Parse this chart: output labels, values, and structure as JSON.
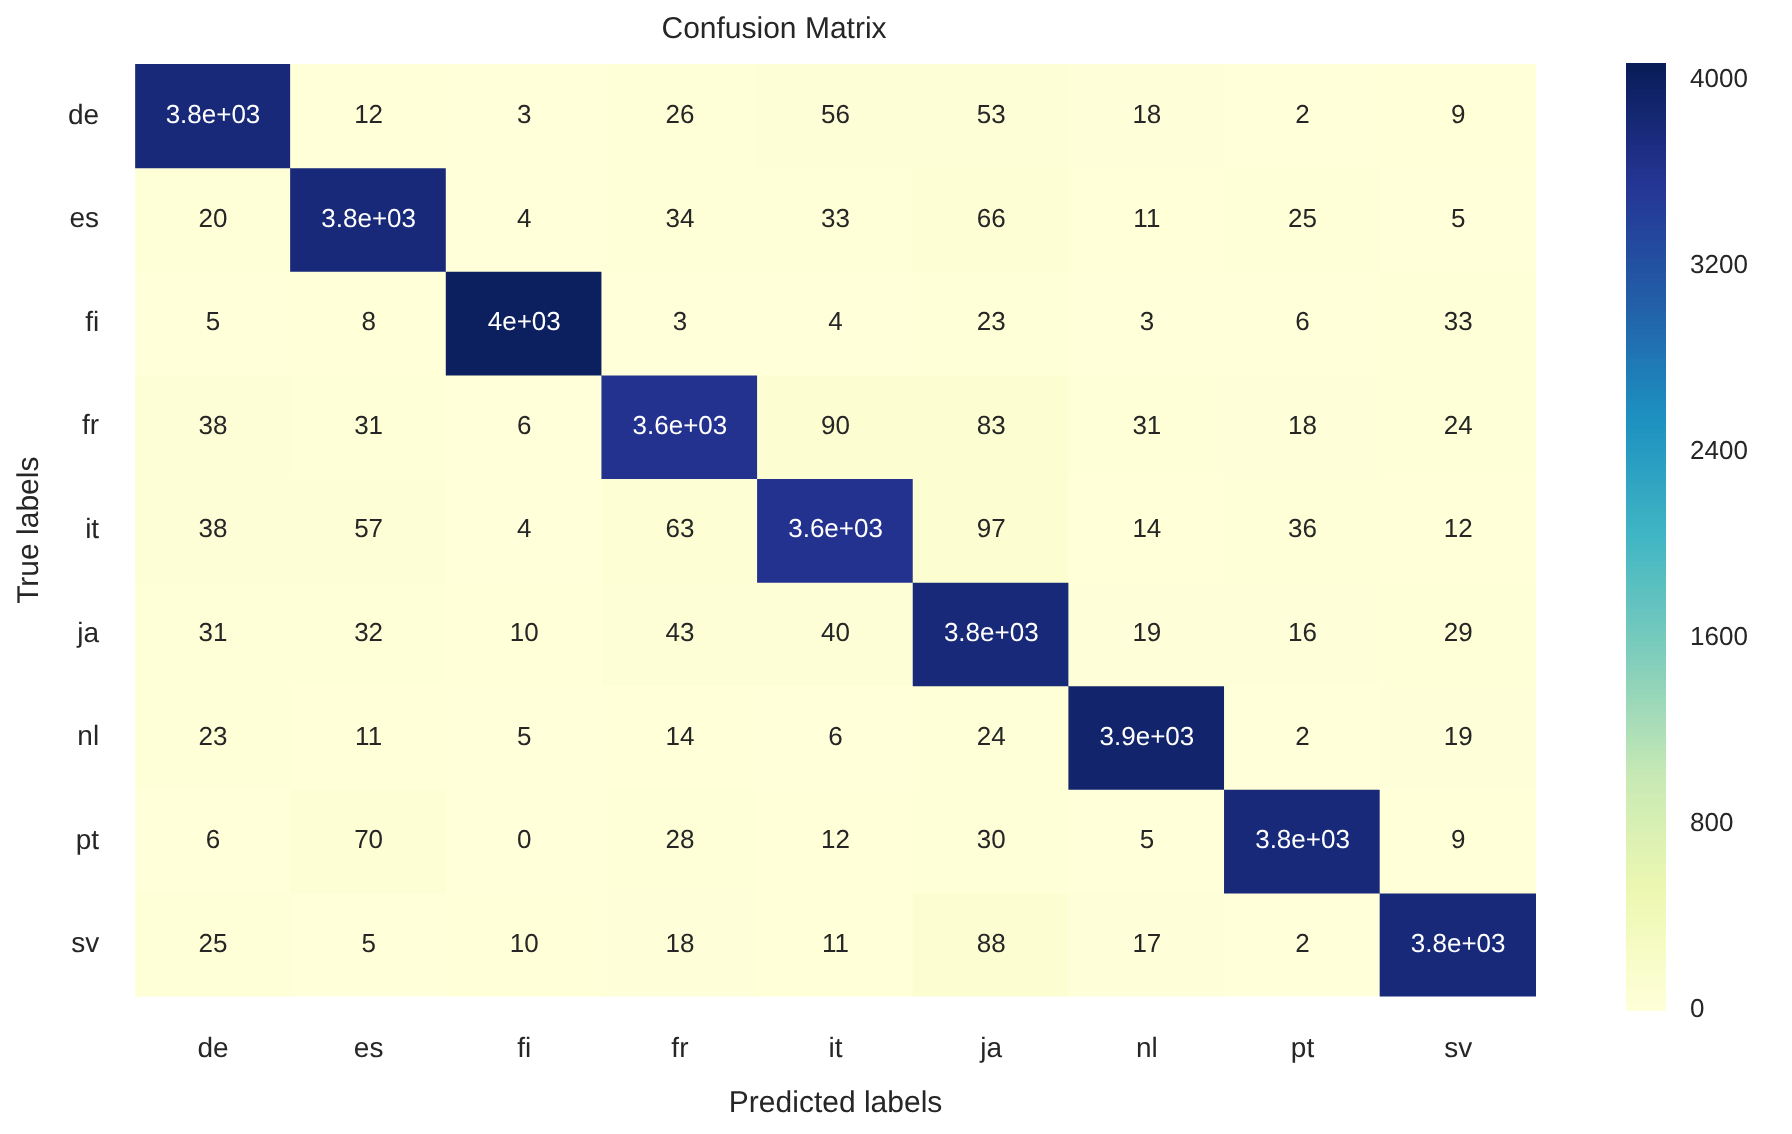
{
  "chart_data": {
    "type": "heatmap",
    "title": "Confusion Matrix",
    "xlabel": "Predicted labels",
    "ylabel": "True labels",
    "categories": [
      "de",
      "es",
      "fi",
      "fr",
      "it",
      "ja",
      "nl",
      "pt",
      "sv"
    ],
    "y_categories": [
      "de",
      "es",
      "fi",
      "fr",
      "it",
      "ja",
      "nl",
      "pt",
      "sv"
    ],
    "cells": [
      [
        3800,
        12,
        3,
        26,
        56,
        53,
        18,
        2,
        9
      ],
      [
        20,
        3800,
        4,
        34,
        33,
        66,
        11,
        25,
        5
      ],
      [
        5,
        8,
        4000,
        3,
        4,
        23,
        3,
        6,
        33
      ],
      [
        38,
        31,
        6,
        3600,
        90,
        83,
        31,
        18,
        24
      ],
      [
        38,
        57,
        4,
        63,
        3600,
        97,
        14,
        36,
        12
      ],
      [
        31,
        32,
        10,
        43,
        40,
        3800,
        19,
        16,
        29
      ],
      [
        23,
        11,
        5,
        14,
        6,
        24,
        3900,
        2,
        19
      ],
      [
        6,
        70,
        0,
        28,
        12,
        30,
        5,
        3800,
        9
      ],
      [
        25,
        5,
        10,
        18,
        11,
        88,
        17,
        2,
        3800
      ]
    ],
    "cell_labels": [
      [
        "3.8e+03",
        "12",
        "3",
        "26",
        "56",
        "53",
        "18",
        "2",
        "9"
      ],
      [
        "20",
        "3.8e+03",
        "4",
        "34",
        "33",
        "66",
        "11",
        "25",
        "5"
      ],
      [
        "5",
        "8",
        "4e+03",
        "3",
        "4",
        "23",
        "3",
        "6",
        "33"
      ],
      [
        "38",
        "31",
        "6",
        "3.6e+03",
        "90",
        "83",
        "31",
        "18",
        "24"
      ],
      [
        "38",
        "57",
        "4",
        "63",
        "3.6e+03",
        "97",
        "14",
        "36",
        "12"
      ],
      [
        "31",
        "32",
        "10",
        "43",
        "40",
        "3.8e+03",
        "19",
        "16",
        "29"
      ],
      [
        "23",
        "11",
        "5",
        "14",
        "6",
        "24",
        "3.9e+03",
        "2",
        "19"
      ],
      [
        "6",
        "70",
        "0",
        "28",
        "12",
        "30",
        "5",
        "3.8e+03",
        "9"
      ],
      [
        "25",
        "5",
        "10",
        "18",
        "11",
        "88",
        "17",
        "2",
        "3.8e+03"
      ]
    ],
    "clim": [
      0,
      4070
    ],
    "cticks": [
      0,
      800,
      1600,
      2400,
      3200,
      4000
    ]
  }
}
